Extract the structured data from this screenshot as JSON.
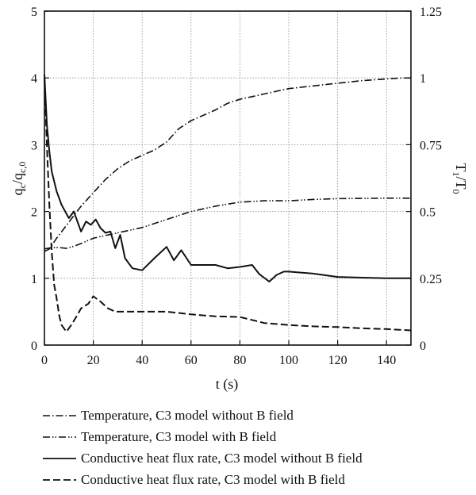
{
  "chart_data": {
    "type": "line",
    "xlabel": "t (s)",
    "ylabel_left": {
      "base": "q",
      "sub1": "c",
      "mid": "/q",
      "sub2": "c,0"
    },
    "ylabel_right": {
      "base": "T",
      "sub1": "1",
      "mid": "/T",
      "sub2": "0"
    },
    "x_ticks": [
      "0",
      "20",
      "40",
      "60",
      "80",
      "100",
      "120",
      "140"
    ],
    "y_left_ticks": [
      "0",
      "1",
      "2",
      "3",
      "4",
      "5"
    ],
    "y_right_ticks": [
      "0",
      "0.25",
      "0.5",
      "0.75",
      "1",
      "1.25"
    ],
    "xlim": [
      0,
      150
    ],
    "ylim_left": [
      0,
      5
    ],
    "ylim_right": [
      0,
      1.25
    ],
    "grid": "dotted",
    "legend_position": "below",
    "series": [
      {
        "name": "Temperature, C3 model without B field",
        "axis": "right",
        "dash": "dash-dot",
        "points": [
          [
            0,
            0.35
          ],
          [
            2,
            0.36
          ],
          [
            5,
            0.4
          ],
          [
            10,
            0.46
          ],
          [
            15,
            0.52
          ],
          [
            20,
            0.57
          ],
          [
            25,
            0.62
          ],
          [
            30,
            0.66
          ],
          [
            35,
            0.69
          ],
          [
            40,
            0.71
          ],
          [
            45,
            0.73
          ],
          [
            50,
            0.76
          ],
          [
            55,
            0.81
          ],
          [
            60,
            0.84
          ],
          [
            65,
            0.86
          ],
          [
            70,
            0.88
          ],
          [
            75,
            0.905
          ],
          [
            80,
            0.92
          ],
          [
            85,
            0.93
          ],
          [
            90,
            0.94
          ],
          [
            95,
            0.95
          ],
          [
            100,
            0.96
          ],
          [
            105,
            0.965
          ],
          [
            110,
            0.97
          ],
          [
            115,
            0.975
          ],
          [
            120,
            0.98
          ],
          [
            125,
            0.985
          ],
          [
            130,
            0.99
          ],
          [
            135,
            0.993
          ],
          [
            140,
            0.996
          ],
          [
            145,
            0.999
          ],
          [
            150,
            1.0
          ]
        ]
      },
      {
        "name": "Temperature, C3 model with B field",
        "axis": "right",
        "dash": "dash-dot-dot",
        "points": [
          [
            0,
            0.36
          ],
          [
            3,
            0.365
          ],
          [
            6,
            0.365
          ],
          [
            9,
            0.362
          ],
          [
            12,
            0.37
          ],
          [
            15,
            0.38
          ],
          [
            20,
            0.4
          ],
          [
            25,
            0.41
          ],
          [
            30,
            0.42
          ],
          [
            40,
            0.44
          ],
          [
            50,
            0.47
          ],
          [
            60,
            0.5
          ],
          [
            70,
            0.52
          ],
          [
            80,
            0.535
          ],
          [
            90,
            0.54
          ],
          [
            100,
            0.54
          ],
          [
            110,
            0.545
          ],
          [
            120,
            0.548
          ],
          [
            130,
            0.549
          ],
          [
            140,
            0.55
          ],
          [
            150,
            0.55
          ]
        ]
      },
      {
        "name": "Conductive heat flux rate, C3 model without B field",
        "axis": "left",
        "dash": "solid",
        "points": [
          [
            0,
            4.05
          ],
          [
            1,
            3.3
          ],
          [
            2,
            2.9
          ],
          [
            3,
            2.6
          ],
          [
            5,
            2.3
          ],
          [
            7,
            2.1
          ],
          [
            10,
            1.9
          ],
          [
            12,
            2.0
          ],
          [
            15,
            1.7
          ],
          [
            17,
            1.85
          ],
          [
            19,
            1.8
          ],
          [
            21,
            1.88
          ],
          [
            23,
            1.75
          ],
          [
            25,
            1.68
          ],
          [
            27,
            1.7
          ],
          [
            29,
            1.45
          ],
          [
            31,
            1.65
          ],
          [
            33,
            1.3
          ],
          [
            36,
            1.15
          ],
          [
            40,
            1.12
          ],
          [
            45,
            1.3
          ],
          [
            50,
            1.47
          ],
          [
            53,
            1.27
          ],
          [
            56,
            1.42
          ],
          [
            60,
            1.2
          ],
          [
            65,
            1.2
          ],
          [
            70,
            1.2
          ],
          [
            75,
            1.15
          ],
          [
            80,
            1.17
          ],
          [
            85,
            1.2
          ],
          [
            88,
            1.06
          ],
          [
            92,
            0.95
          ],
          [
            95,
            1.05
          ],
          [
            98,
            1.1
          ],
          [
            100,
            1.1
          ],
          [
            110,
            1.07
          ],
          [
            120,
            1.02
          ],
          [
            130,
            1.01
          ],
          [
            140,
            1.0
          ],
          [
            150,
            1.0
          ]
        ]
      },
      {
        "name": "Conductive heat flux rate, C3 model with B field",
        "axis": "left",
        "dash": "dashed",
        "points": [
          [
            0,
            4.0
          ],
          [
            1,
            3.0
          ],
          [
            2,
            2.1
          ],
          [
            3,
            1.4
          ],
          [
            4,
            0.9
          ],
          [
            5,
            0.7
          ],
          [
            6,
            0.45
          ],
          [
            7,
            0.3
          ],
          [
            9,
            0.2
          ],
          [
            11,
            0.3
          ],
          [
            13,
            0.42
          ],
          [
            15,
            0.55
          ],
          [
            18,
            0.62
          ],
          [
            20,
            0.73
          ],
          [
            23,
            0.65
          ],
          [
            26,
            0.55
          ],
          [
            29,
            0.5
          ],
          [
            32,
            0.5
          ],
          [
            35,
            0.5
          ],
          [
            40,
            0.5
          ],
          [
            50,
            0.5
          ],
          [
            60,
            0.46
          ],
          [
            70,
            0.43
          ],
          [
            80,
            0.42
          ],
          [
            90,
            0.33
          ],
          [
            100,
            0.3
          ],
          [
            110,
            0.28
          ],
          [
            120,
            0.27
          ],
          [
            130,
            0.25
          ],
          [
            140,
            0.24
          ],
          [
            150,
            0.22
          ]
        ]
      }
    ]
  }
}
